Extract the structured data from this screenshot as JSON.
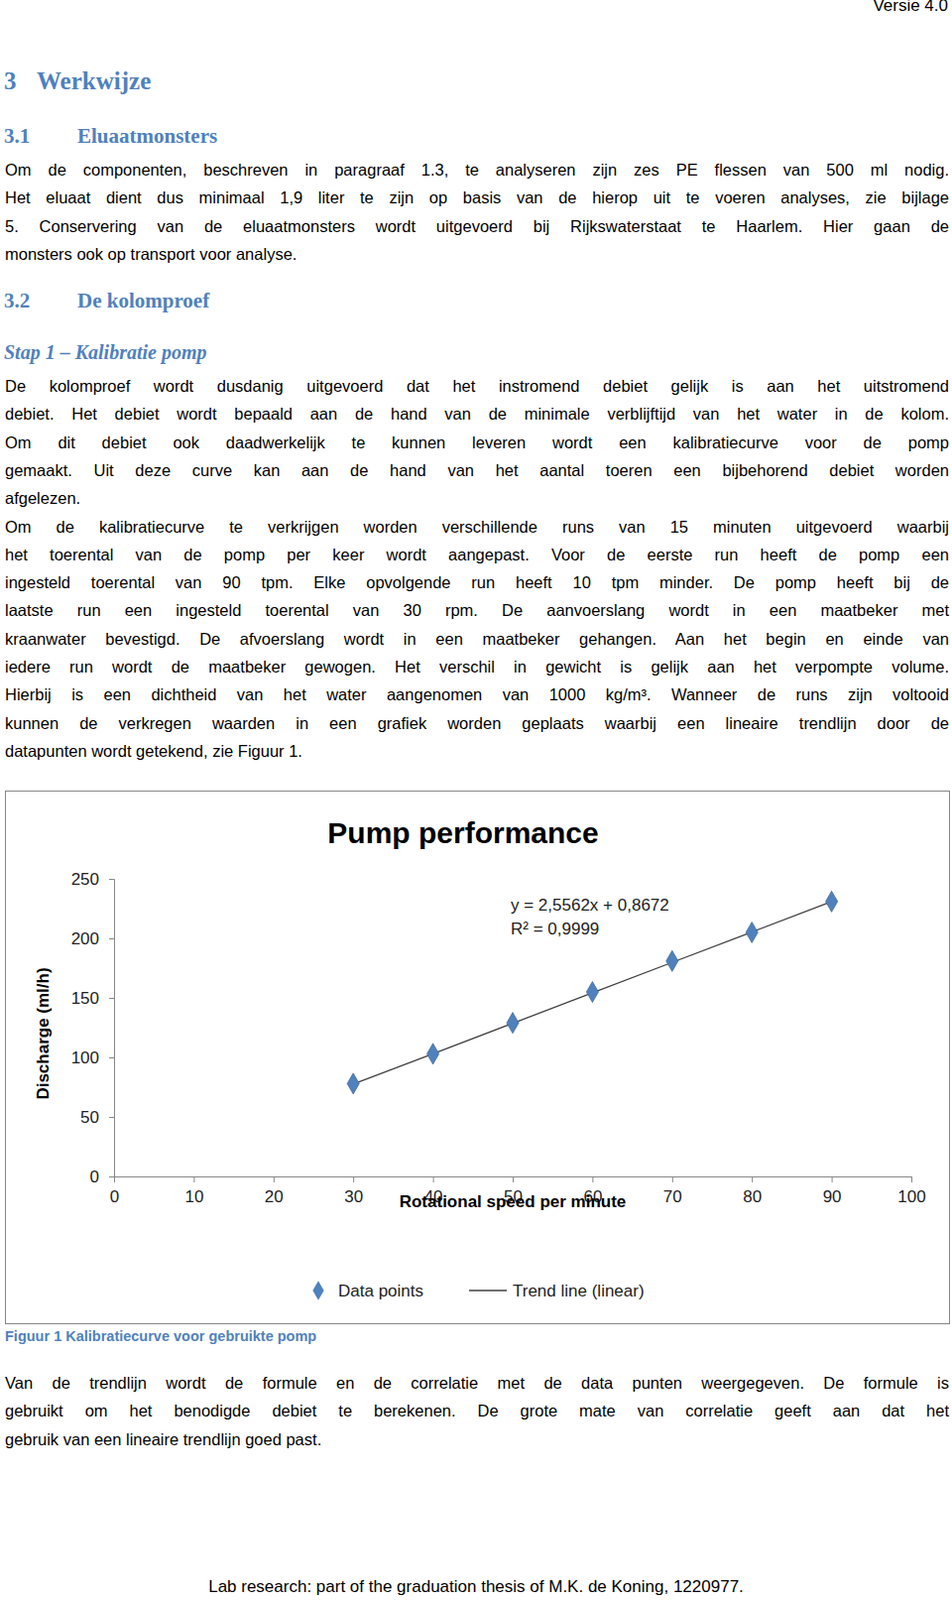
{
  "document": {
    "version": "Versie 4.0",
    "headings": [
      {
        "number": "3",
        "title": "Werkwijze"
      },
      {
        "number": "3.1",
        "title": "Eluaatmonsters"
      },
      {
        "number": "3.2",
        "title": "De kolomproef"
      }
    ],
    "subheading": "Stap 1 – Kalibratie pomp",
    "paragraphs": [
      {
        "lines": [
          "Om de componenten, beschreven in paragraaf 1.3, te analyseren zijn zes PE flessen van 500 ml nodig.",
          "Het eluaat dient dus minimaal 1,9 liter te zijn op basis van de hierop uit te voeren analyses, zie bijlage",
          "5. Conservering van de eluaatmonsters wordt uitgevoerd bij Rijkswaterstaat te Haarlem. Hier gaan de",
          "monsters ook op transport voor analyse."
        ]
      },
      {
        "lines": [
          "De kolomproef wordt dusdanig uitgevoerd dat het instromend debiet gelijk is aan het uitstromend",
          "debiet. Het debiet wordt bepaald aan de hand van de minimale verblijftijd van het water in de kolom.",
          "Om dit debiet ook daadwerkelijk te kunnen leveren wordt een kalibratiecurve voor de pomp",
          "gemaakt. Uit deze curve kan aan de hand van het aantal toeren een bijbehorend debiet worden",
          "afgelezen."
        ]
      },
      {
        "lines": [
          "Om de kalibratiecurve te verkrijgen worden verschillende runs van 15 minuten uitgevoerd waarbij",
          "het toerental van de pomp per keer wordt aangepast. Voor de eerste run heeft de pomp een",
          "ingesteld toerental van 90 tpm. Elke opvolgende run heeft 10 tpm minder. De pomp heeft bij de",
          "laatste run een ingesteld toerental van 30 rpm. De aanvoerslang wordt in een maatbeker met",
          "kraanwater bevestigd. De afvoerslang wordt in een maatbeker gehangen. Aan het begin en einde van",
          "iedere run wordt de maatbeker gewogen. Het verschil in gewicht is gelijk aan het verpompte volume.",
          "Hierbij is een dichtheid van het water aangenomen van 1000 kg/m³. Wanneer de runs zijn voltooid",
          "kunnen de verkregen waarden in een grafiek worden geplaats waarbij een lineaire trendlijn door de",
          "datapunten wordt getekend, zie Figuur 1."
        ]
      },
      {
        "lines": [
          "Van de trendlijn wordt de formule en de correlatie met de data punten weergegeven. De formule is",
          "gebruikt om het benodigde debiet te berekenen. De grote mate van correlatie geeft aan dat het",
          "gebruik van een lineaire trendlijn goed past."
        ]
      }
    ],
    "caption": "Figuur 1 Kalibratiecurve voor gebruikte pomp",
    "footer": "Lab research: part of the graduation thesis of M.K. de Koning, 1220977."
  },
  "chart_data": {
    "type": "scatter",
    "title": "Pump performance",
    "x_label": "Rotational speed per minute",
    "y_label": "Discharge (ml/h)",
    "x": [
      30,
      40,
      50,
      60,
      70,
      80,
      90
    ],
    "series": [
      {
        "name": "Data points",
        "type": "scatter",
        "marker": "diamond",
        "color": "#4f81bd",
        "values": [
          78,
          103,
          129,
          155,
          181,
          205,
          231
        ]
      },
      {
        "name": "Trend line (linear)",
        "type": "line",
        "line_style": "solid",
        "color": "#404040",
        "values": [
          77.6,
          103.1,
          128.7,
          154.2,
          179.8,
          205.4,
          230.9
        ]
      }
    ],
    "annotations": [
      "y = 2,5562x + 0,8672",
      "R² = 0,9999"
    ],
    "xlim": [
      0,
      100
    ],
    "xticks": [
      0,
      10,
      20,
      30,
      40,
      50,
      60,
      70,
      80,
      90,
      100
    ],
    "ylim": [
      0,
      250
    ],
    "yticks": [
      0,
      50,
      100,
      150,
      200,
      250
    ],
    "grid": false,
    "legend": "bottom"
  }
}
